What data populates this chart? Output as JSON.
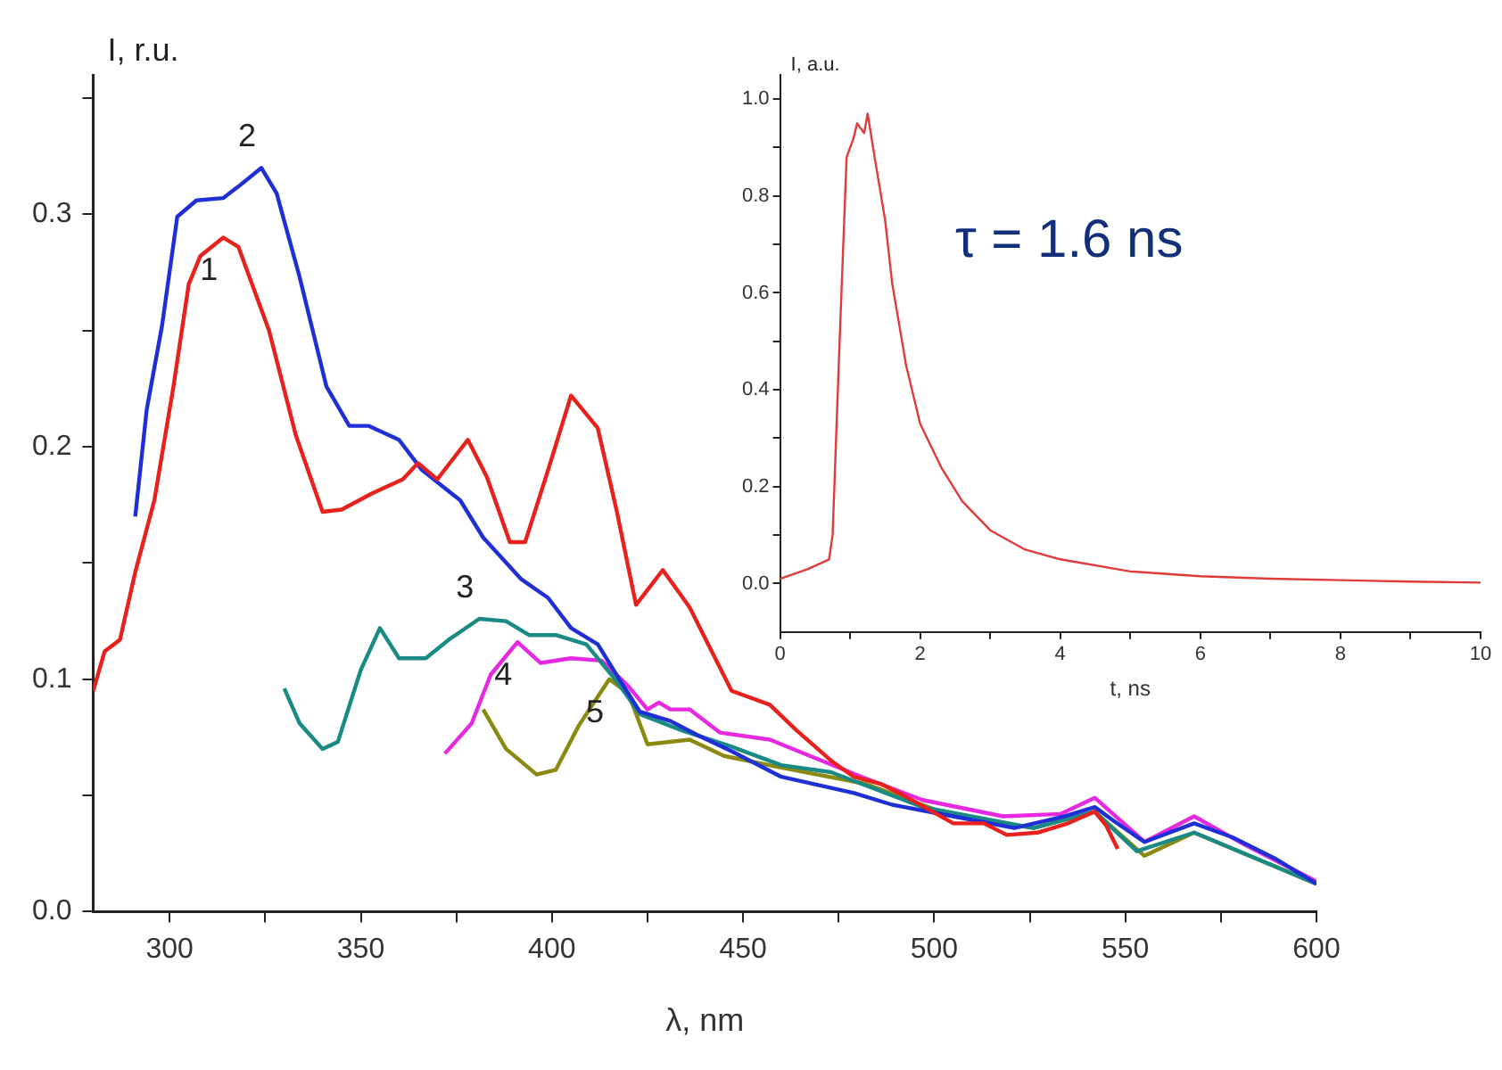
{
  "chart_data": [
    {
      "type": "line",
      "xlabel": "λ, nm",
      "ylabel": "I, r.u.",
      "xlim": [
        280,
        600
      ],
      "xticks": [
        300,
        {
          "value": 325,
          "label": null
        },
        350,
        {
          "value": 375,
          "label": null
        },
        400,
        {
          "value": 425,
          "label": null
        },
        450,
        {
          "value": 475,
          "label": null
        },
        500,
        {
          "value": 525,
          "label": null
        },
        550,
        {
          "value": 575,
          "label": null
        },
        600
      ],
      "ylim": [
        0,
        0.36
      ],
      "yticks": [
        {
          "value": 0,
          "label": "0.0"
        },
        {
          "value": 0.05,
          "label": null
        },
        0.1,
        {
          "value": 0.15,
          "label": null
        },
        0.2,
        {
          "value": 0.25,
          "label": null
        },
        0.3,
        {
          "value": 0.35,
          "label": null
        }
      ],
      "grid": false,
      "legend": false,
      "marker": "none",
      "line_style": "solid",
      "series": [
        {
          "name": "1",
          "color": "#e8211d",
          "x": [
            280,
            283,
            287,
            291,
            296,
            301,
            305,
            308,
            314,
            318,
            326,
            333,
            340,
            345,
            353,
            361,
            365,
            370,
            378,
            383,
            389,
            393,
            399,
            405,
            412,
            417,
            422,
            429,
            436,
            447,
            457,
            464,
            473,
            479,
            486,
            492,
            505,
            513,
            519,
            527,
            535,
            542,
            545,
            548
          ],
          "values": [
            0.095,
            0.112,
            0.117,
            0.146,
            0.177,
            0.226,
            0.27,
            0.282,
            0.29,
            0.286,
            0.25,
            0.205,
            0.172,
            0.173,
            0.18,
            0.186,
            0.193,
            0.186,
            0.203,
            0.187,
            0.159,
            0.159,
            0.19,
            0.222,
            0.208,
            0.172,
            0.132,
            0.147,
            0.131,
            0.095,
            0.089,
            0.078,
            0.065,
            0.058,
            0.055,
            0.05,
            0.038,
            0.038,
            0.033,
            0.034,
            0.038,
            0.043,
            0.037,
            0.027
          ]
        },
        {
          "name": "2",
          "color": "#1f2fd6",
          "x": [
            291,
            294,
            298,
            302,
            307,
            314,
            318,
            324,
            328,
            334,
            341,
            347,
            352,
            360,
            366,
            376,
            382,
            392,
            399,
            405,
            412,
            418,
            423,
            431,
            438,
            447,
            460,
            479,
            489,
            505,
            521,
            534,
            542,
            547,
            555,
            568,
            578,
            589,
            600
          ],
          "values": [
            0.17,
            0.216,
            0.252,
            0.299,
            0.306,
            0.307,
            0.312,
            0.32,
            0.309,
            0.273,
            0.226,
            0.209,
            0.209,
            0.203,
            0.19,
            0.177,
            0.161,
            0.143,
            0.135,
            0.122,
            0.115,
            0.099,
            0.086,
            0.082,
            0.076,
            0.069,
            0.058,
            0.051,
            0.046,
            0.041,
            0.036,
            0.041,
            0.045,
            0.039,
            0.03,
            0.038,
            0.032,
            0.023,
            0.012
          ]
        },
        {
          "name": "3",
          "color": "#1a8a84",
          "x": [
            330,
            334,
            340,
            344,
            350,
            355,
            360,
            367,
            373,
            381,
            388,
            394,
            401,
            409,
            417,
            423,
            434,
            447,
            460,
            473,
            497,
            526,
            542,
            553,
            568,
            600
          ],
          "values": [
            0.096,
            0.081,
            0.07,
            0.073,
            0.104,
            0.122,
            0.109,
            0.109,
            0.117,
            0.126,
            0.125,
            0.119,
            0.119,
            0.115,
            0.099,
            0.085,
            0.078,
            0.071,
            0.063,
            0.06,
            0.045,
            0.036,
            0.043,
            0.026,
            0.034,
            0.012
          ]
        },
        {
          "name": "4",
          "color": "#e628e0",
          "x": [
            372,
            379,
            384,
            391,
            397,
            405,
            413,
            420,
            425,
            428,
            431,
            436,
            444,
            457,
            481,
            497,
            518,
            533,
            542,
            555,
            568,
            581,
            600
          ],
          "values": [
            0.068,
            0.081,
            0.102,
            0.116,
            0.107,
            0.109,
            0.108,
            0.097,
            0.087,
            0.09,
            0.087,
            0.087,
            0.077,
            0.074,
            0.058,
            0.048,
            0.041,
            0.042,
            0.049,
            0.03,
            0.041,
            0.029,
            0.013
          ]
        },
        {
          "name": "5",
          "color": "#8a8a12",
          "x": [
            382,
            388,
            396,
            401,
            407,
            415,
            420,
            425,
            436,
            445,
            460,
            482,
            505,
            526,
            542,
            555,
            568,
            600
          ],
          "values": [
            0.087,
            0.07,
            0.059,
            0.061,
            0.08,
            0.1,
            0.094,
            0.072,
            0.074,
            0.067,
            0.062,
            0.055,
            0.041,
            0.036,
            0.043,
            0.024,
            0.034,
            0.012
          ]
        }
      ]
    },
    {
      "type": "line",
      "xlabel": "t, ns",
      "ylabel": "I, a.u.",
      "annotations": [
        "τ = 1.6 ns"
      ],
      "xlim": [
        0,
        10
      ],
      "xticks": [
        0,
        {
          "value": 1,
          "label": null
        },
        2,
        {
          "value": 3,
          "label": null
        },
        4,
        {
          "value": 5,
          "label": null
        },
        6,
        {
          "value": 7,
          "label": null
        },
        8,
        {
          "value": 9,
          "label": null
        },
        10
      ],
      "ylim": [
        -0.1,
        1.05
      ],
      "yticks": [
        {
          "value": 0,
          "label": "0.0"
        },
        {
          "value": 0.1,
          "label": null
        },
        0.2,
        {
          "value": 0.3,
          "label": null
        },
        0.4,
        {
          "value": 0.5,
          "label": null
        },
        0.6,
        {
          "value": 0.7,
          "label": null
        },
        0.8,
        {
          "value": 0.9,
          "label": null
        },
        {
          "value": 1,
          "label": "1.0"
        }
      ],
      "grid": false,
      "legend": false,
      "marker": "none",
      "line_style": "solid",
      "series": [
        {
          "color": "#e03a3a",
          "x": [
            0,
            0.4,
            0.7,
            0.75,
            0.85,
            0.95,
            1.05,
            1.1,
            1.2,
            1.25,
            1.35,
            1.5,
            1.6,
            1.8,
            2,
            2.3,
            2.6,
            3,
            3.5,
            4,
            5,
            6,
            7,
            8,
            9,
            10
          ],
          "values": [
            0.01,
            0.03,
            0.05,
            0.1,
            0.5,
            0.88,
            0.92,
            0.95,
            0.93,
            0.97,
            0.88,
            0.75,
            0.62,
            0.45,
            0.33,
            0.24,
            0.17,
            0.11,
            0.07,
            0.05,
            0.025,
            0.015,
            0.01,
            0.007,
            0.004,
            0.002
          ]
        }
      ]
    }
  ]
}
